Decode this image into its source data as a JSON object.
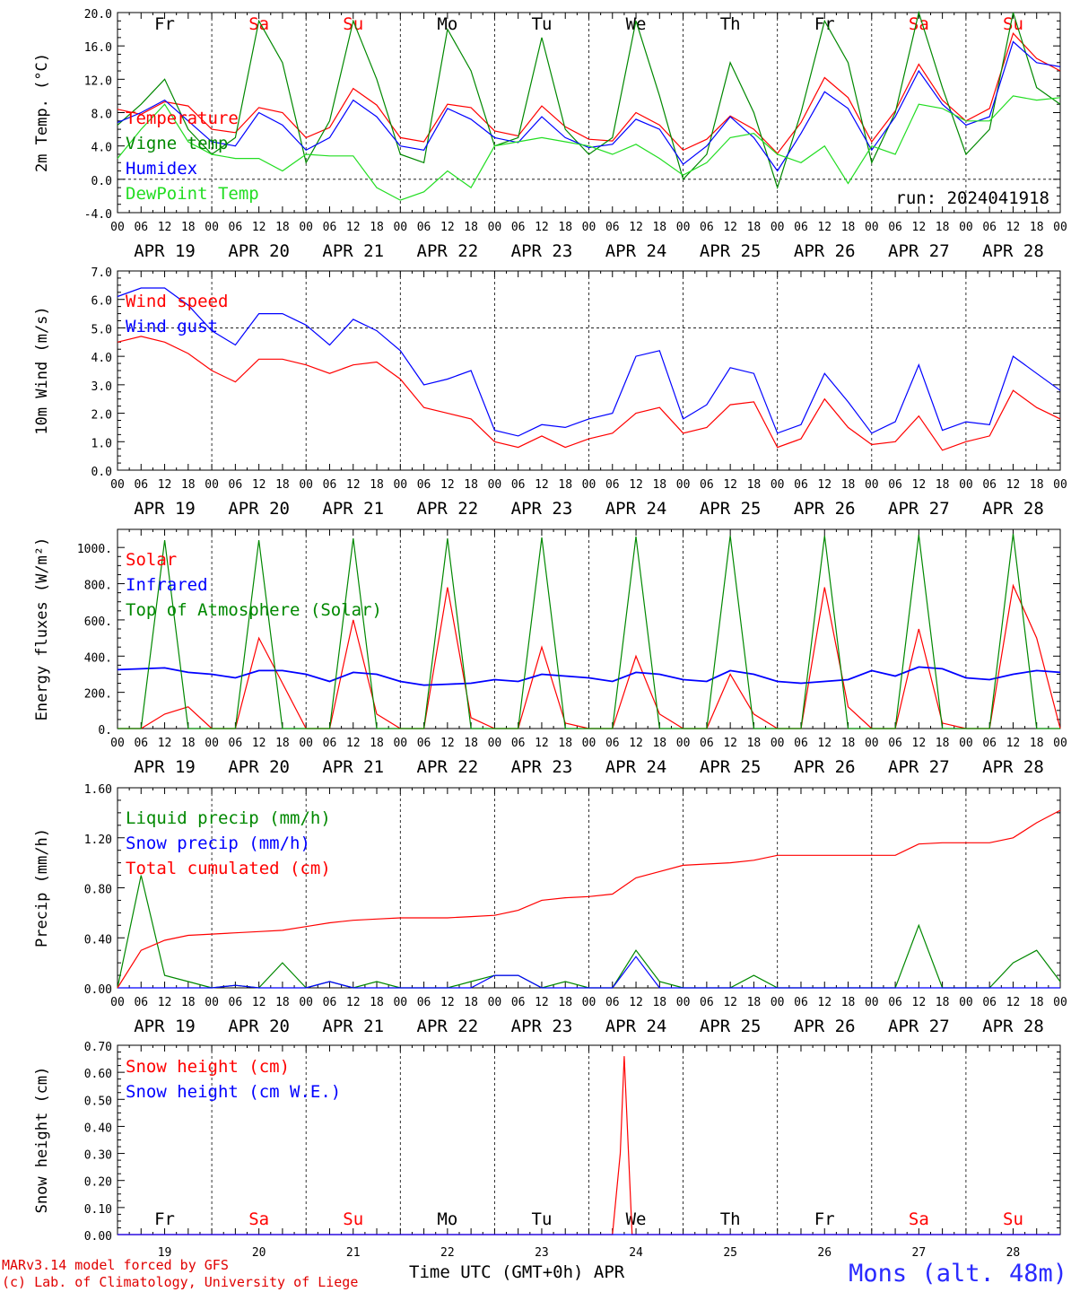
{
  "meta": {
    "run_label": "run: 2024041918",
    "credit_line1": "MARv3.14 model forced by GFS",
    "credit_line2": "(c) Lab. of Climatology, University of Liege",
    "station": "Mons (alt. 48m)",
    "x_title": "Time UTC (GMT+0h) APR"
  },
  "days": {
    "abbrev": [
      "Fr",
      "Sa",
      "Su",
      "Mo",
      "Tu",
      "We",
      "Th",
      "Fr",
      "Sa",
      "Su"
    ],
    "weekend": [
      false,
      true,
      true,
      false,
      false,
      false,
      false,
      false,
      true,
      true
    ],
    "dates": [
      "APR 19",
      "APR 20",
      "APR 21",
      "APR 22",
      "APR 23",
      "APR 24",
      "APR 25",
      "APR 26",
      "APR 27",
      "APR 28"
    ],
    "numbers": [
      "19",
      "20",
      "21",
      "22",
      "23",
      "24",
      "25",
      "26",
      "27",
      "28"
    ],
    "hour_ticks": [
      "00",
      "06",
      "12",
      "18"
    ],
    "final_tick": "00"
  },
  "colors": {
    "red": "#ff0000",
    "green": "#008800",
    "blue": "#0000ff",
    "lightgreen": "#22dd22",
    "weekend": "#ff0000",
    "weekday": "#000000"
  },
  "chart_data": [
    {
      "type": "line",
      "ylabel": "2m Temp. (°C)",
      "ylim": [
        -4,
        20
      ],
      "yticks": [
        "-4.0",
        "0.0",
        "4.0",
        "8.0",
        "12.0",
        "16.0",
        "20.0"
      ],
      "ytick_values": [
        -4,
        0,
        4,
        8,
        12,
        16,
        20
      ],
      "ref_line": 0,
      "x_hours": [
        0,
        6,
        12,
        18,
        24,
        30,
        36,
        42,
        48,
        54,
        60,
        66,
        72,
        78,
        84,
        90,
        96,
        102,
        108,
        114,
        120,
        126,
        132,
        138,
        144,
        150,
        156,
        162,
        168,
        174,
        180,
        186,
        192,
        198,
        204,
        210,
        216,
        222,
        228,
        234,
        240
      ],
      "series": [
        {
          "name": "Temperature",
          "color": "red",
          "values": [
            8.4,
            7.8,
            9.3,
            8.8,
            6.0,
            5.6,
            8.6,
            8.0,
            5.0,
            6.2,
            10.9,
            8.9,
            5.0,
            4.5,
            9.0,
            8.6,
            5.8,
            5.2,
            8.8,
            6.3,
            4.8,
            4.6,
            8.0,
            6.5,
            3.5,
            4.8,
            7.6,
            6.0,
            3.1,
            6.8,
            12.2,
            9.8,
            4.5,
            8.2,
            13.8,
            9.5,
            7.0,
            8.5,
            17.5,
            14.5,
            13.0
          ]
        },
        {
          "name": "Vigne temp",
          "color": "green",
          "values": [
            6.5,
            9.0,
            12.0,
            6.0,
            3.0,
            5.0,
            19.0,
            14.0,
            2.0,
            7.0,
            19.0,
            12.0,
            3.0,
            2.0,
            18.0,
            13.0,
            4.0,
            5.0,
            17.0,
            6.0,
            3.0,
            5.0,
            19.0,
            10.0,
            0.0,
            3.0,
            14.0,
            8.0,
            -1.0,
            8.0,
            19.0,
            14.0,
            2.0,
            8.0,
            20.0,
            11.0,
            3.0,
            6.0,
            20.0,
            11.0,
            9.0
          ]
        },
        {
          "name": "Humidex",
          "color": "blue",
          "values": [
            6.8,
            8.0,
            9.5,
            7.0,
            4.5,
            4.0,
            8.0,
            6.5,
            3.5,
            5.0,
            9.5,
            7.5,
            4.0,
            3.5,
            8.5,
            7.2,
            5.0,
            4.4,
            7.5,
            5.0,
            3.8,
            4.2,
            7.2,
            6.0,
            1.8,
            4.0,
            7.5,
            5.0,
            1.0,
            5.5,
            10.5,
            8.5,
            3.5,
            7.5,
            13.0,
            9.0,
            6.5,
            7.5,
            16.5,
            14.0,
            13.5
          ]
        },
        {
          "name": "DewPoint Temp",
          "color": "lightgreen",
          "values": [
            2.5,
            6.0,
            9.0,
            4.5,
            3.0,
            2.5,
            2.5,
            1.0,
            3.0,
            2.8,
            2.8,
            -1.0,
            -2.5,
            -1.5,
            1.0,
            -1.0,
            4.0,
            4.5,
            5.0,
            4.5,
            4.0,
            3.0,
            4.2,
            2.5,
            0.5,
            2.0,
            5.0,
            5.5,
            3.0,
            2.0,
            4.0,
            -0.5,
            4.0,
            3.0,
            9.0,
            8.5,
            7.0,
            7.0,
            10.0,
            9.5,
            9.8
          ]
        }
      ]
    },
    {
      "type": "line",
      "ylabel": "10m Wind (m/s)",
      "ylim": [
        0,
        7
      ],
      "yticks": [
        "0.0",
        "1.0",
        "2.0",
        "3.0",
        "4.0",
        "5.0",
        "6.0",
        "7.0"
      ],
      "ytick_values": [
        0,
        1,
        2,
        3,
        4,
        5,
        6,
        7
      ],
      "ref_line": 5,
      "x_hours": [
        0,
        6,
        12,
        18,
        24,
        30,
        36,
        42,
        48,
        54,
        60,
        66,
        72,
        78,
        84,
        90,
        96,
        102,
        108,
        114,
        120,
        126,
        132,
        138,
        144,
        150,
        156,
        162,
        168,
        174,
        180,
        186,
        192,
        198,
        204,
        210,
        216,
        222,
        228,
        234,
        240
      ],
      "series": [
        {
          "name": "Wind speed",
          "color": "red",
          "values": [
            4.5,
            4.7,
            4.5,
            4.1,
            3.5,
            3.1,
            3.9,
            3.9,
            3.7,
            3.4,
            3.7,
            3.8,
            3.2,
            2.2,
            2.0,
            1.8,
            1.0,
            0.8,
            1.2,
            0.8,
            1.1,
            1.3,
            2.0,
            2.2,
            1.3,
            1.5,
            2.3,
            2.4,
            0.8,
            1.1,
            2.5,
            1.5,
            0.9,
            1.0,
            1.9,
            0.7,
            1.0,
            1.2,
            2.8,
            2.2,
            1.8
          ]
        },
        {
          "name": "Wind gust",
          "color": "blue",
          "values": [
            6.1,
            6.4,
            6.4,
            5.8,
            4.9,
            4.4,
            5.5,
            5.5,
            5.1,
            4.4,
            5.3,
            4.9,
            4.2,
            3.0,
            3.2,
            3.5,
            1.4,
            1.2,
            1.6,
            1.5,
            1.8,
            2.0,
            4.0,
            4.2,
            1.8,
            2.3,
            3.6,
            3.4,
            1.3,
            1.6,
            3.4,
            2.4,
            1.3,
            1.7,
            3.7,
            1.4,
            1.7,
            1.6,
            4.0,
            3.4,
            2.8
          ]
        }
      ]
    },
    {
      "type": "line",
      "ylabel": "Energy fluxes (W/m²)",
      "ylim": [
        0,
        1100
      ],
      "yticks": [
        "0.",
        "200.",
        "400.",
        "600.",
        "800.",
        "1000."
      ],
      "ytick_values": [
        0,
        200,
        400,
        600,
        800,
        1000
      ],
      "ref_line": null,
      "x_hours": [
        0,
        6,
        12,
        18,
        24,
        30,
        36,
        42,
        48,
        54,
        60,
        66,
        72,
        78,
        84,
        90,
        96,
        102,
        108,
        114,
        120,
        126,
        132,
        138,
        144,
        150,
        156,
        162,
        168,
        174,
        180,
        186,
        192,
        198,
        204,
        210,
        216,
        222,
        228,
        234,
        240
      ],
      "series": [
        {
          "name": "Solar",
          "color": "red",
          "values": [
            0,
            0,
            80,
            120,
            0,
            0,
            500,
            250,
            0,
            0,
            600,
            80,
            0,
            0,
            780,
            60,
            0,
            0,
            450,
            30,
            0,
            0,
            400,
            80,
            0,
            0,
            300,
            80,
            0,
            0,
            780,
            120,
            0,
            0,
            550,
            30,
            0,
            0,
            790,
            500,
            0
          ]
        },
        {
          "name": "Infrared",
          "color": "blue",
          "values": [
            325,
            330,
            335,
            310,
            300,
            280,
            320,
            320,
            300,
            260,
            310,
            300,
            260,
            240,
            245,
            250,
            270,
            260,
            300,
            290,
            280,
            260,
            310,
            300,
            270,
            260,
            320,
            300,
            260,
            250,
            260,
            270,
            320,
            290,
            340,
            330,
            280,
            270,
            300,
            320,
            310
          ]
        },
        {
          "name": "Top of Atmosphere (Solar)",
          "color": "green",
          "values": [
            0,
            0,
            1040,
            0,
            0,
            0,
            1040,
            0,
            0,
            0,
            1050,
            0,
            0,
            0,
            1050,
            0,
            0,
            0,
            1055,
            0,
            0,
            0,
            1060,
            0,
            0,
            0,
            1065,
            0,
            0,
            0,
            1065,
            0,
            0,
            0,
            1070,
            0,
            0,
            0,
            1075,
            0,
            0
          ]
        }
      ]
    },
    {
      "type": "line",
      "ylabel": "Precip (mm/h)",
      "ylim": [
        0,
        1.6
      ],
      "yticks": [
        "0.00",
        "0.40",
        "0.80",
        "1.20",
        "1.60"
      ],
      "ytick_values": [
        0,
        0.4,
        0.8,
        1.2,
        1.6
      ],
      "ref_line": null,
      "x_hours": [
        0,
        6,
        12,
        18,
        24,
        30,
        36,
        42,
        48,
        54,
        60,
        66,
        72,
        78,
        84,
        90,
        96,
        102,
        108,
        114,
        120,
        126,
        132,
        138,
        144,
        150,
        156,
        162,
        168,
        174,
        180,
        186,
        192,
        198,
        204,
        210,
        216,
        222,
        228,
        234,
        240
      ],
      "series": [
        {
          "name": "Liquid precip (mm/h)",
          "color": "green",
          "values": [
            0,
            0.9,
            0.1,
            0.05,
            0,
            0.02,
            0,
            0.2,
            0,
            0.05,
            0,
            0.05,
            0,
            0,
            0,
            0.05,
            0.1,
            0.1,
            0,
            0.05,
            0,
            0,
            0.3,
            0.05,
            0,
            0,
            0,
            0.1,
            0,
            0,
            0,
            0,
            0,
            0,
            0.5,
            0,
            0,
            0,
            0.2,
            0.3,
            0.05
          ]
        },
        {
          "name": "Snow precip (mm/h)",
          "color": "blue",
          "values": [
            0,
            0,
            0,
            0,
            0,
            0.02,
            0,
            0,
            0,
            0.05,
            0,
            0,
            0,
            0,
            0,
            0,
            0.1,
            0.1,
            0,
            0,
            0,
            0,
            0.25,
            0,
            0,
            0,
            0,
            0,
            0,
            0,
            0,
            0,
            0,
            0,
            0,
            0,
            0,
            0,
            0,
            0,
            0
          ]
        },
        {
          "name": "Total cumulated (cm)",
          "color": "red",
          "values": [
            0,
            0.3,
            0.38,
            0.42,
            0.43,
            0.44,
            0.45,
            0.46,
            0.49,
            0.52,
            0.54,
            0.55,
            0.56,
            0.56,
            0.56,
            0.57,
            0.58,
            0.62,
            0.7,
            0.72,
            0.73,
            0.75,
            0.88,
            0.93,
            0.98,
            0.99,
            1.0,
            1.02,
            1.06,
            1.06,
            1.06,
            1.06,
            1.06,
            1.06,
            1.15,
            1.16,
            1.16,
            1.16,
            1.2,
            1.32,
            1.42
          ]
        }
      ]
    },
    {
      "type": "line",
      "ylabel": "Snow height (cm)",
      "ylim": [
        0,
        0.7
      ],
      "yticks": [
        "0.00",
        "0.10",
        "0.20",
        "0.30",
        "0.40",
        "0.50",
        "0.60",
        "0.70"
      ],
      "ytick_values": [
        0,
        0.1,
        0.2,
        0.3,
        0.4,
        0.5,
        0.6,
        0.7
      ],
      "ref_line": null,
      "x_hours": [
        0,
        126,
        128,
        129,
        131,
        240
      ],
      "series": [
        {
          "name": "Snow height (cm)",
          "color": "red",
          "values": [
            0,
            0,
            0.3,
            0.66,
            0,
            0
          ]
        },
        {
          "name": "Snow height (cm W.E.)",
          "color": "blue",
          "values": [
            0,
            0,
            0,
            0,
            0,
            0
          ]
        }
      ]
    }
  ]
}
